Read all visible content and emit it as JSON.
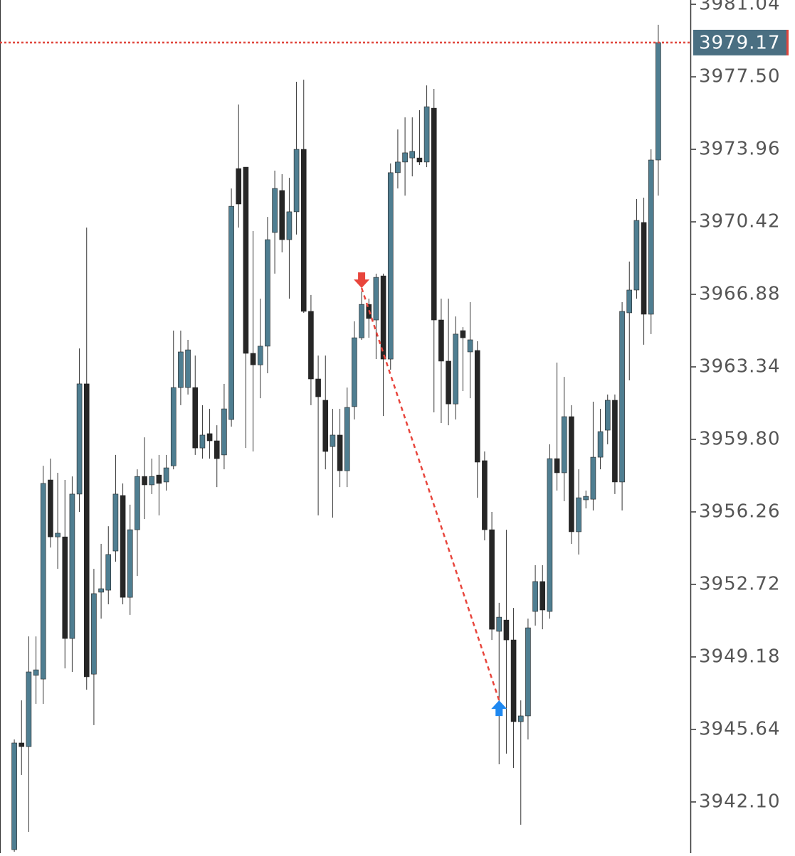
{
  "chart_data": {
    "type": "candlestick",
    "open": [
      3939.77,
      3944.98,
      3944.8,
      3948.28,
      3948.1,
      3957.82,
      3955.04,
      3955.04,
      3950.08,
      3957.13,
      3962.51,
      3948.34,
      3952.34,
      3952.44,
      3954.35,
      3957.06,
      3952.09,
      3955.39,
      3957.99,
      3957.58,
      3958.06,
      3957.72,
      3958.51,
      3962.33,
      3962.33,
      3962.33,
      3959.38,
      3960.08,
      3959.73,
      3959.04,
      3960.77,
      3973.02,
      3973.09,
      3964.0,
      3963.44,
      3964.35,
      3969.9,
      3971.95,
      3969.55,
      3970.91,
      3973.96,
      3966.05,
      3962.75,
      3961.71,
      3959.45,
      3960.01,
      3958.27,
      3961.4,
      3964.76,
      3966.39,
      3965.63,
      3967.78,
      3963.72,
      3972.82,
      3973.34,
      3973.54,
      3973.54,
      3973.34,
      3975.97,
      3965.63,
      3963.62,
      3961.53,
      3965.11,
      3964.07,
      3964.14,
      3958.76,
      3955.39,
      3950.43,
      3950.98,
      3950.01,
      3946.02,
      3946.3,
      3951.4,
      3952.86,
      3951.4,
      3958.86,
      3958.17,
      3960.91,
      3955.29,
      3956.85,
      3956.88,
      3958.93,
      3960.25,
      3961.71,
      3957.72,
      3965.98,
      3967.09,
      3970.39,
      3965.91,
      3973.44
    ],
    "high": [
      3945.15,
      3947.06,
      3950.18,
      3950.18,
      3958.51,
      3958.86,
      3958.17,
      3957.82,
      3957.99,
      3964.24,
      3970.14,
      3953.48,
      3954.7,
      3955.56,
      3959.04,
      3957.65,
      3956.61,
      3958.34,
      3959.9,
      3958.86,
      3959.04,
      3959.04,
      3965.11,
      3965.11,
      3964.66,
      3963.89,
      3961.47,
      3961.29,
      3960.49,
      3962.51,
      3972.05,
      3976.15,
      3973.09,
      3969.97,
      3966.67,
      3970.66,
      3972.92,
      3972.75,
      3972.57,
      3977.26,
      3977.36,
      3966.85,
      3963.89,
      3963.89,
      3961.29,
      3961.29,
      3962.33,
      3965.56,
      3967.02,
      3966.67,
      3967.89,
      3967.89,
      3973.27,
      3974.93,
      3975.52,
      3975.52,
      3975.87,
      3977.08,
      3976.91,
      3966.67,
      3966.67,
      3965.8,
      3965.28,
      3966.5,
      3964.59,
      3959.21,
      3956.26,
      3951.82,
      3955.39,
      3951.57,
      3947.06,
      3951.05,
      3953.66,
      3953.66,
      3959.56,
      3963.55,
      3962.85,
      3961.47,
      3958.34,
      3957.3,
      3961.64,
      3961.29,
      3961.99,
      3961.99,
      3966.5,
      3968.48,
      3971.53,
      3971.6,
      3973.96,
      3980.04
    ],
    "low": [
      3939.67,
      3943.42,
      3940.64,
      3946.89,
      3946.89,
      3954.52,
      3953.48,
      3948.62,
      3948.45,
      3956.26,
      3947.58,
      3945.85,
      3951.05,
      3951.75,
      3953.83,
      3951.75,
      3951.23,
      3953.13,
      3955.91,
      3957.13,
      3956.09,
      3957.3,
      3958.34,
      3961.47,
      3961.99,
      3959.04,
      3958.86,
      3958.86,
      3957.47,
      3958.34,
      3960.42,
      3970.14,
      3959.38,
      3959.21,
      3961.81,
      3963.03,
      3967.89,
      3968.93,
      3966.67,
      3969.8,
      3965.98,
      3961.47,
      3956.09,
      3958.34,
      3955.98,
      3957.47,
      3957.47,
      3960.77,
      3964.66,
      3964.76,
      3963.72,
      3960.94,
      3963.2,
      3972.05,
      3971.7,
      3972.64,
      3973.2,
      3973.09,
      3961.12,
      3960.6,
      3960.49,
      3960.77,
      3962.16,
      3961.81,
      3956.95,
      3954.87,
      3950.01,
      3943.94,
      3944.46,
      3943.76,
      3940.99,
      3945.15,
      3950.71,
      3950.53,
      3951.05,
      3957.3,
      3956.78,
      3954.7,
      3954.18,
      3956.43,
      3956.33,
      3958.34,
      3959.56,
      3957.13,
      3956.33,
      3962.68,
      3966.67,
      3964.42,
      3964.94,
      3971.7
    ],
    "close": [
      3944.98,
      3944.8,
      3948.45,
      3948.55,
      3957.65,
      3955.04,
      3955.22,
      3950.08,
      3957.13,
      3962.51,
      3948.21,
      3952.27,
      3952.51,
      3954.18,
      3957.13,
      3952.09,
      3955.39,
      3957.99,
      3957.58,
      3957.99,
      3957.65,
      3958.41,
      3962.33,
      3964.07,
      3964.17,
      3959.38,
      3960.01,
      3959.73,
      3958.86,
      3961.29,
      3971.18,
      3971.29,
      3964.0,
      3963.44,
      3964.35,
      3969.55,
      3972.05,
      3969.55,
      3970.91,
      3973.96,
      3966.05,
      3962.75,
      3961.88,
      3959.21,
      3960.01,
      3958.27,
      3961.36,
      3964.76,
      3966.39,
      3965.7,
      3967.71,
      3963.72,
      3972.82,
      3973.34,
      3973.79,
      3973.86,
      3973.34,
      3976.04,
      3965.63,
      3963.62,
      3961.53,
      3964.94,
      3964.76,
      3964.66,
      3958.69,
      3955.39,
      3950.53,
      3951.12,
      3950.01,
      3946.02,
      3946.3,
      3950.6,
      3952.86,
      3951.47,
      3958.86,
      3958.17,
      3960.91,
      3955.29,
      3956.95,
      3957.02,
      3958.93,
      3960.18,
      3961.71,
      3957.72,
      3966.05,
      3967.09,
      3970.49,
      3965.91,
      3973.44,
      3979.17
    ],
    "up_color": "#4f7e91",
    "down_color": "#262626",
    "ylim": [
      3939.6,
      3981.25
    ],
    "yticks": [
      3981.04,
      {
        "value": 3977.5,
        "label": "3977.50"
      },
      3973.96,
      3970.42,
      3966.88,
      3963.34,
      {
        "value": 3959.8,
        "label": "3959.80"
      },
      3956.26,
      3952.72,
      3949.18,
      3945.64,
      {
        "value": 3942.1,
        "label": "3942.10"
      }
    ],
    "current_price": 3979.17,
    "current_price_color": "#e0453c",
    "markers": [
      {
        "index": 48,
        "price": 3967.19,
        "color": "#e8453c",
        "direction": "down"
      },
      {
        "index": 67,
        "price": 3947.06,
        "color": "#1e88f0",
        "direction": "up"
      }
    ]
  }
}
